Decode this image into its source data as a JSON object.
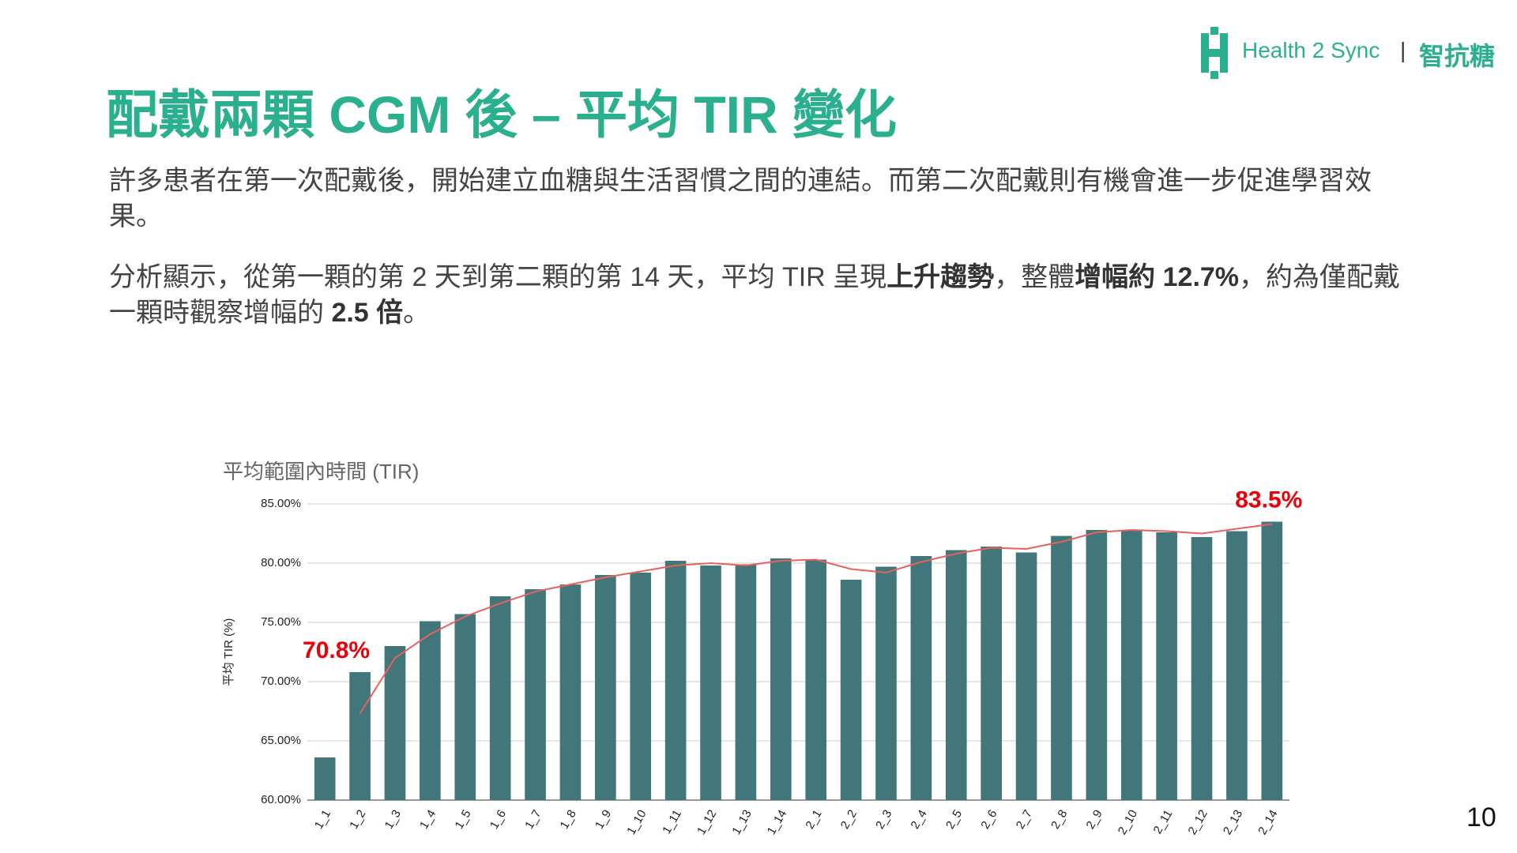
{
  "header": {
    "brand": "Health 2 Sync",
    "separator": "|",
    "brand_zh": "智抗糖"
  },
  "title": "配戴兩顆 CGM 後 – 平均 TIR 變化",
  "paragraphs": [
    {
      "runs": [
        {
          "text": "許多患者在第一次配戴後，開始建立血糖與生活習慣之間的連結。而第二次配戴則有機會進一步促進學習效果。",
          "bold": false
        }
      ]
    },
    {
      "runs": [
        {
          "text": "分析顯示，從第一顆的第 2 天到第二顆的第 14 天，平均 TIR 呈現",
          "bold": false
        },
        {
          "text": "上升趨勢",
          "bold": true
        },
        {
          "text": "，整體",
          "bold": false
        },
        {
          "text": "增幅約 12.7%",
          "bold": true
        },
        {
          "text": "，約為僅配戴一顆時觀察增幅的 ",
          "bold": false
        },
        {
          "text": "2.5 倍",
          "bold": true
        },
        {
          "text": "。",
          "bold": false
        }
      ]
    }
  ],
  "page_number": "10",
  "chart_data": {
    "type": "bar",
    "title": "平均範圍內時間 (TIR)",
    "y_label": "平均 TIR (%)",
    "categories": [
      "1_1",
      "1_2",
      "1_3",
      "1_4",
      "1_5",
      "1_6",
      "1_7",
      "1_8",
      "1_9",
      "1_10",
      "1_11",
      "1_12",
      "1_13",
      "1_14",
      "2_1",
      "2_2",
      "2_3",
      "2_4",
      "2_5",
      "2_6",
      "2_7",
      "2_8",
      "2_9",
      "2_10",
      "2_11",
      "2_12",
      "2_13",
      "2_14"
    ],
    "series": [
      {
        "type": "bar",
        "color": "#41777a",
        "values": [
          63.6,
          70.8,
          73.0,
          75.1,
          75.7,
          77.2,
          77.8,
          78.2,
          79.0,
          79.2,
          80.2,
          79.8,
          79.9,
          80.4,
          80.3,
          78.6,
          79.7,
          80.6,
          81.1,
          81.4,
          80.9,
          82.3,
          82.8,
          82.8,
          82.6,
          82.2,
          82.7,
          83.5
        ],
        "value_labels": [
          null,
          "70.8%",
          null,
          null,
          null,
          null,
          null,
          null,
          null,
          null,
          null,
          null,
          null,
          null,
          null,
          null,
          null,
          null,
          null,
          null,
          null,
          null,
          null,
          null,
          null,
          null,
          null,
          "83.5%"
        ],
        "label_color": "#e8000b"
      },
      {
        "type": "line",
        "color": "#e8615c",
        "values": [
          null,
          67.3,
          72.0,
          74.0,
          75.5,
          76.6,
          77.6,
          78.2,
          78.8,
          79.3,
          79.8,
          80.0,
          79.8,
          80.2,
          80.3,
          79.5,
          79.2,
          80.1,
          80.8,
          81.3,
          81.2,
          81.8,
          82.6,
          82.8,
          82.7,
          82.5,
          82.9,
          83.3
        ]
      }
    ],
    "ylim": [
      60,
      85
    ],
    "yticks": [
      {
        "value": 60,
        "label": "60.00%"
      },
      {
        "value": 65,
        "label": "65.00%"
      },
      {
        "value": 70,
        "label": "70.00%"
      },
      {
        "value": 75,
        "label": "75.00%"
      },
      {
        "value": 80,
        "label": "80.00%"
      },
      {
        "value": 85,
        "label": "85.00%"
      }
    ],
    "grid": true
  }
}
